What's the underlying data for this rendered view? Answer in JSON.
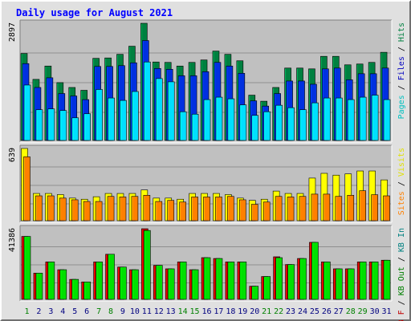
{
  "chart_data": {
    "type": "bar",
    "title": "Daily usage for August 2021",
    "categories": [
      "1",
      "2",
      "3",
      "4",
      "5",
      "6",
      "7",
      "8",
      "9",
      "10",
      "11",
      "12",
      "13",
      "14",
      "15",
      "16",
      "17",
      "18",
      "19",
      "20",
      "21",
      "22",
      "23",
      "24",
      "25",
      "26",
      "27",
      "28",
      "29",
      "30",
      "31"
    ],
    "weekend_days": [
      "1",
      "7",
      "8",
      "14",
      "15",
      "21",
      "22",
      "28",
      "29"
    ],
    "colors": {
      "title": "#0000ff",
      "panel": "#c0c0c0",
      "pages": "#00e0ff",
      "files": "#0030e0",
      "hits": "#008040",
      "visits": "#ffff00",
      "sites": "#ff8000",
      "kb_in": "#00e000",
      "kb_out": "#c00000",
      "weekday_label": "#000080",
      "weekend_label": "#008000",
      "grid": "#808080"
    },
    "panels": [
      {
        "id": "hits-files-pages",
        "ymax_label": "2897",
        "ymax": 2897,
        "legend": [
          {
            "text": "Pages",
            "color": "#00c0c0"
          },
          {
            "text": " / ",
            "color": "#000000"
          },
          {
            "text": "Files",
            "color": "#0000c0"
          },
          {
            "text": " / ",
            "color": "#000000"
          },
          {
            "text": "Hits",
            "color": "#008040"
          }
        ],
        "series": [
          {
            "name": "Hits",
            "values": [
              2150,
              1510,
              1840,
              1430,
              1310,
              1240,
              2030,
              2040,
              2130,
              2330,
              2897,
              1940,
              1930,
              1840,
              1930,
              1990,
              2210,
              2130,
              1970,
              1120,
              970,
              1310,
              1790,
              1790,
              1770,
              2080,
              2080,
              1870,
              1890,
              1930,
              2180
            ]
          },
          {
            "name": "Files",
            "values": [
              1900,
              1310,
              1550,
              1160,
              1100,
              1010,
              1830,
              1830,
              1850,
              1920,
              2470,
              1780,
              1760,
              1600,
              1600,
              1700,
              1930,
              1840,
              1660,
              980,
              850,
              1160,
              1470,
              1470,
              1390,
              1770,
              1790,
              1500,
              1650,
              1650,
              1790
            ]
          },
          {
            "name": "Pages",
            "values": [
              1370,
              760,
              780,
              740,
              560,
              660,
              1260,
              1050,
              990,
              1210,
              1940,
              1530,
              1450,
              710,
              650,
              1010,
              1070,
              1030,
              880,
              620,
              710,
              870,
              810,
              760,
              930,
              1050,
              1050,
              1010,
              1070,
              1120,
              1010
            ]
          }
        ]
      },
      {
        "id": "visits-sites",
        "ymax_label": "639",
        "ymax": 639,
        "legend": [
          {
            "text": "Sites",
            "color": "#ff8000"
          },
          {
            "text": " / ",
            "color": "#000000"
          },
          {
            "text": "Visits",
            "color": "#e0e000"
          }
        ],
        "series": [
          {
            "name": "Visits",
            "values": [
              639,
              241,
              241,
              231,
              200,
              190,
              212,
              241,
              241,
              241,
              272,
              200,
              200,
              190,
              241,
              241,
              241,
              231,
              200,
              180,
              190,
              262,
              241,
              241,
              377,
              419,
              403,
              414,
              440,
              440,
              361
            ]
          },
          {
            "name": "Sites",
            "values": [
              565,
              220,
              220,
              200,
              185,
              170,
              170,
              215,
              210,
              215,
              225,
              170,
              180,
              165,
              210,
              210,
              210,
              215,
              185,
              145,
              165,
              215,
              210,
              215,
              235,
              235,
              215,
              225,
              265,
              230,
              220
            ]
          }
        ]
      },
      {
        "id": "kbytes",
        "ymax_label": "41386",
        "ymax": 41386,
        "legend": [
          {
            "text": "KB F",
            "color": "#c00000"
          },
          {
            "text": " / ",
            "color": "#000000"
          },
          {
            "text": "KB Out",
            "color": "#008000"
          },
          {
            "text": " / ",
            "color": "#000000"
          },
          {
            "text": "KB In",
            "color": "#008080"
          }
        ],
        "series": [
          {
            "name": "KB In",
            "values": [
              36880,
              15380,
              21930,
              17370,
              11710,
              10190,
              21930,
              26430,
              18940,
              17370,
              41386,
              19900,
              17890,
              21930,
              17370,
              24440,
              23950,
              21930,
              21930,
              7710,
              13380,
              24940,
              20420,
              23950,
              33410,
              21930,
              17890,
              17890,
              21930,
              21930,
              22940
            ]
          },
          {
            "name": "KB Out",
            "values": [
              36880,
              15380,
              21930,
              17370,
              11710,
              10190,
              21930,
              26430,
              18940,
              17370,
              40370,
              19900,
              17890,
              21930,
              17370,
              24440,
              23950,
              21930,
              21930,
              7710,
              13380,
              24440,
              20420,
              23950,
              33410,
              21930,
              17890,
              17890,
              21930,
              21930,
              22940
            ]
          }
        ]
      }
    ]
  }
}
